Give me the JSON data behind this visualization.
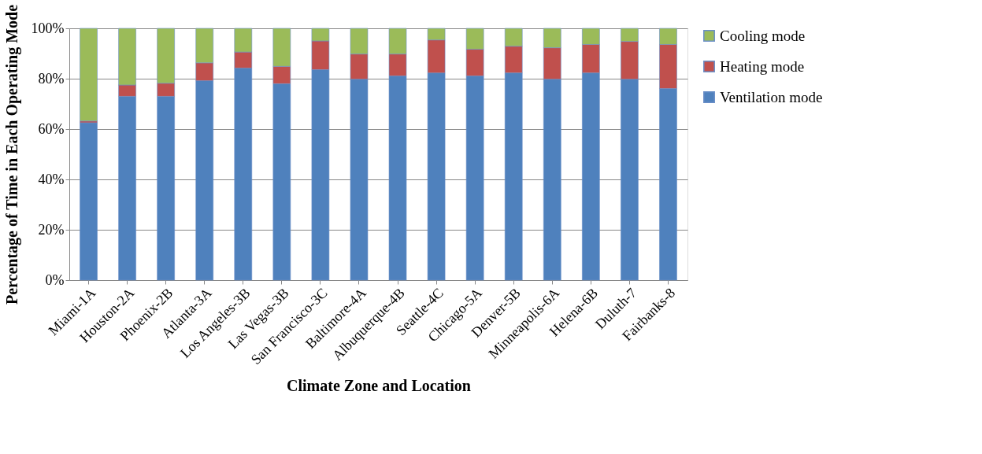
{
  "chart_data": {
    "type": "bar",
    "stacked": true,
    "xlabel": "Climate Zone and Location",
    "ylabel": "Percentage of Time in Each Operating Mode",
    "categories": [
      "Miami-1A",
      "Houston-2A",
      "Phoenix-2B",
      "Atlanta-3A",
      "Los Angeles-3B",
      "Las Vegas-3B",
      "San Francisco-3C",
      "Baltimore-4A",
      "Albuquerque-4B",
      "Seattle-4C",
      "Chicago-5A",
      "Denver-5B",
      "Minneapolis-6A",
      "Helena-6B",
      "Duluth-7",
      "Fairbanks-8"
    ],
    "series": [
      {
        "name": "Ventilation mode",
        "color": "#4f81bd",
        "values": [
          62.5,
          73.0,
          73.0,
          79.2,
          84.2,
          78.0,
          83.6,
          79.8,
          81.1,
          82.3,
          81.1,
          82.3,
          79.8,
          82.3,
          79.8,
          76.1
        ]
      },
      {
        "name": "Heating mode",
        "color": "#c0504d",
        "values": [
          0.7,
          4.5,
          5.2,
          7.1,
          6.4,
          6.9,
          11.4,
          10.0,
          8.7,
          13.1,
          10.6,
          10.6,
          12.5,
          11.3,
          15.0,
          17.5
        ]
      },
      {
        "name": "Cooling mode",
        "color": "#9bbb59",
        "values": [
          36.8,
          22.5,
          21.8,
          13.7,
          9.4,
          15.1,
          5.0,
          10.2,
          10.2,
          4.6,
          8.3,
          7.1,
          7.7,
          6.4,
          5.2,
          6.4
        ]
      }
    ],
    "ylim": [
      0,
      100
    ],
    "yticks": [
      {
        "value": 0,
        "label": "0%"
      },
      {
        "value": 20,
        "label": "20%"
      },
      {
        "value": 40,
        "label": "40%"
      },
      {
        "value": 60,
        "label": "60%"
      },
      {
        "value": 80,
        "label": "80%"
      },
      {
        "value": 100,
        "label": "100%"
      }
    ],
    "grid": "y",
    "legend": "right"
  }
}
